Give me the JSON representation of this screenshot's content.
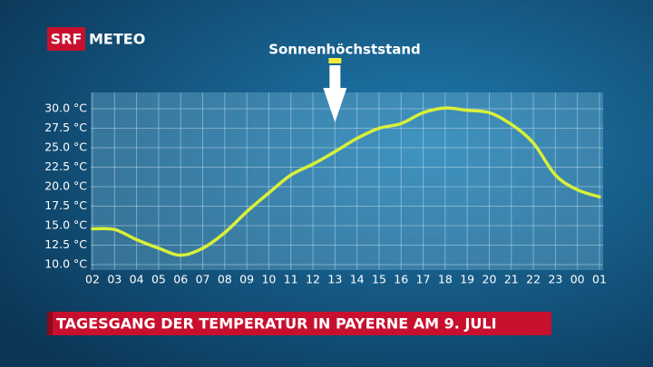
{
  "logo": {
    "left": "SRF",
    "right": "METEO"
  },
  "chart_data": {
    "type": "line",
    "title": "TAGESGANG DER TEMPERATUR IN PAYERNE AM 9. JULI",
    "annotation": {
      "text": "Sonnenhöchststand",
      "category": "13"
    },
    "categories": [
      "02",
      "03",
      "04",
      "05",
      "06",
      "07",
      "08",
      "09",
      "10",
      "11",
      "12",
      "13",
      "14",
      "15",
      "16",
      "17",
      "18",
      "19",
      "20",
      "21",
      "22",
      "23",
      "00",
      "01"
    ],
    "series": [
      {
        "color": "#d8f03a",
        "values": [
          14.6,
          14.5,
          13.2,
          12.1,
          11.2,
          12.1,
          14.1,
          16.8,
          19.2,
          21.5,
          22.9,
          24.5,
          26.2,
          27.5,
          28.1,
          29.5,
          30.1,
          29.8,
          29.5,
          28.0,
          25.6,
          21.5,
          19.6,
          18.7
        ]
      }
    ],
    "ylim": [
      9.3,
      32.1
    ],
    "yticks": [
      {
        "value": 10,
        "label": "10.0 °C"
      },
      {
        "value": 12.5,
        "label": "12.5 °C"
      },
      {
        "value": 15,
        "label": "15.0 °C"
      },
      {
        "value": 17.5,
        "label": "17.5 °C"
      },
      {
        "value": 20,
        "label": "20.0 °C"
      },
      {
        "value": 22.5,
        "label": "22.5 °C"
      },
      {
        "value": 25,
        "label": "25.0 °C"
      },
      {
        "value": 27.5,
        "label": "27.5 °C"
      },
      {
        "value": 30,
        "label": "30.0 °C"
      }
    ],
    "grid": true
  }
}
